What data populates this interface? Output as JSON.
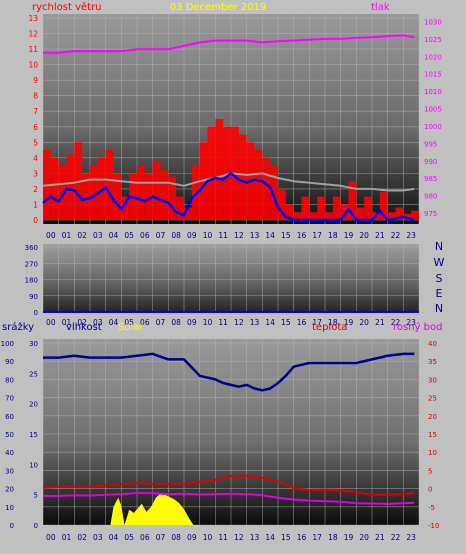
{
  "colors": {
    "wind": "#ff0000",
    "gust": "#a0a0a0",
    "speed_line": "#0000ff",
    "pressure": "#ff00ff",
    "humidity": "#000090",
    "temperature": "#e00000",
    "dew_point": "#e000e0",
    "solar": "#ffff00",
    "frame_bg": "#c0c0c0",
    "dir_labels": "#000080",
    "rain_labels": "#000080",
    "date_color": "#ffff00"
  },
  "chart_data": [
    {
      "type": "line",
      "title": "03 December 2019",
      "left_label": "rychlost větru",
      "right_label": "tlak",
      "x_ticks": [
        "00",
        "01",
        "02",
        "03",
        "04",
        "05",
        "06",
        "07",
        "08",
        "09",
        "10",
        "11",
        "12",
        "13",
        "14",
        "15",
        "16",
        "17",
        "18",
        "19",
        "20",
        "21",
        "22",
        "23"
      ],
      "y_left_ticks": [
        "0",
        "1",
        "2",
        "3",
        "4",
        "5",
        "6",
        "7",
        "8",
        "9",
        "10",
        "11",
        "12",
        "13"
      ],
      "y_right_ticks": [
        "975",
        "980",
        "985",
        "990",
        "995",
        "1000",
        "1005",
        "1010",
        "1015",
        "1020",
        "1025",
        "1030"
      ],
      "ylim_left": [
        0,
        13
      ],
      "ylim_right": [
        973,
        1031
      ],
      "series": [
        {
          "key": "pressure",
          "axis": "right",
          "x": [
            0,
            1,
            2,
            3,
            4,
            5,
            6,
            7,
            8,
            9,
            10,
            11,
            12,
            13,
            14,
            15,
            16,
            17,
            18,
            19,
            20,
            21,
            22,
            23,
            23.7
          ],
          "values": [
            1021,
            1021,
            1021.5,
            1021.5,
            1021.5,
            1021.5,
            1022,
            1022,
            1022,
            1023,
            1024,
            1024.5,
            1024.5,
            1024.5,
            1024,
            1024.3,
            1024.5,
            1024.8,
            1025,
            1025,
            1025.3,
            1025.5,
            1025.8,
            1026,
            1025.5
          ]
        },
        {
          "key": "gust",
          "axis": "left",
          "x": [
            0,
            1,
            2,
            3,
            4,
            5,
            6,
            7,
            8,
            9,
            10,
            11,
            12,
            13,
            14,
            15,
            16,
            17,
            18,
            19,
            20,
            21,
            22,
            23,
            23.7
          ],
          "values": [
            2.2,
            2.3,
            2.4,
            2.6,
            2.6,
            2.5,
            2.4,
            2.4,
            2.4,
            2.2,
            2.5,
            2.7,
            3.0,
            2.9,
            3.0,
            2.7,
            2.5,
            2.4,
            2.3,
            2.2,
            2.0,
            2.0,
            1.9,
            1.9,
            2.0
          ]
        },
        {
          "key": "speed_line",
          "axis": "left",
          "x": [
            0,
            0.5,
            1,
            1.5,
            2,
            2.5,
            3,
            3.5,
            4,
            4.5,
            5,
            5.5,
            6,
            6.5,
            7,
            7.5,
            8,
            8.5,
            9,
            9.5,
            10,
            10.5,
            11,
            11.5,
            12,
            12.5,
            13,
            13.5,
            14,
            14.5,
            15,
            15.5,
            16,
            17,
            18,
            19,
            19.5,
            20,
            21,
            21.5,
            22,
            23,
            23.7
          ],
          "values": [
            1.1,
            1.5,
            1.2,
            2.0,
            1.9,
            1.3,
            1.4,
            1.7,
            2.1,
            1.3,
            0.7,
            1.5,
            1.4,
            1.2,
            1.5,
            1.3,
            1.1,
            0.5,
            0.3,
            1.4,
            1.9,
            2.5,
            2.7,
            2.6,
            3.0,
            2.6,
            2.4,
            2.6,
            2.5,
            2.1,
            0.8,
            0.2,
            0.0,
            0.0,
            0.0,
            0.0,
            0.7,
            0.0,
            0.0,
            0.6,
            0.0,
            0.2,
            0.0
          ]
        },
        {
          "key": "wind",
          "axis": "left",
          "x": [
            0,
            0.5,
            1,
            1.5,
            2,
            2.5,
            3,
            3.5,
            4,
            4.5,
            5,
            5.5,
            6,
            6.5,
            7,
            7.5,
            8,
            8.5,
            9,
            9.5,
            10,
            10.5,
            11,
            11.5,
            12,
            12.5,
            13,
            13.5,
            14,
            14.5,
            15,
            15.5,
            16,
            16.5,
            17,
            17.5,
            18,
            18.5,
            19,
            19.5,
            20,
            20.5,
            21,
            21.5,
            22,
            22.5,
            23,
            23.5
          ],
          "values": [
            4.5,
            4.0,
            3.5,
            4.2,
            5.0,
            3.0,
            3.5,
            4.0,
            4.5,
            3.0,
            1.5,
            3.0,
            3.5,
            3.0,
            3.8,
            3.2,
            2.8,
            1.5,
            0.8,
            3.5,
            5.0,
            6.0,
            6.5,
            6.0,
            6.0,
            5.5,
            5.0,
            4.5,
            4.0,
            3.5,
            2.0,
            1.0,
            0.5,
            1.5,
            0.5,
            1.5,
            0.5,
            1.5,
            1.0,
            2.5,
            0.8,
            1.5,
            0.5,
            1.8,
            0.5,
            0.8,
            0.4,
            0.6
          ]
        }
      ]
    },
    {
      "type": "scatter",
      "x_ticks": [
        "00",
        "01",
        "02",
        "03",
        "04",
        "05",
        "06",
        "07",
        "08",
        "09",
        "10",
        "11",
        "12",
        "13",
        "14",
        "15",
        "16",
        "17",
        "18",
        "19",
        "20",
        "21",
        "22",
        "23"
      ],
      "y_ticks": [
        "0",
        "90",
        "180",
        "270",
        "360"
      ],
      "ylim": [
        0,
        360
      ],
      "dir_labels": [
        "N",
        "W",
        "S",
        "E",
        "N"
      ],
      "series": [
        {
          "key": "direction",
          "x": [],
          "values": []
        }
      ]
    },
    {
      "type": "line",
      "labels": {
        "rain": "srážky",
        "humidity": "vlhkost",
        "solar": "Solar",
        "temperature": "teplota",
        "dew_point": "rosný bod"
      },
      "x_ticks": [
        "00",
        "01",
        "02",
        "03",
        "04",
        "05",
        "06",
        "07",
        "08",
        "09",
        "10",
        "11",
        "12",
        "13",
        "14",
        "15",
        "16",
        "17",
        "18",
        "19",
        "20",
        "21",
        "22",
        "23"
      ],
      "y_rain_ticks": [
        "0",
        "10",
        "20",
        "30",
        "40",
        "50",
        "60",
        "70",
        "80",
        "90",
        "100"
      ],
      "y_humidity_ticks": [
        "0",
        "5",
        "10",
        "15",
        "20",
        "25",
        "30"
      ],
      "y_temp_ticks": [
        "-10",
        "-5",
        "0",
        "5",
        "10",
        "15",
        "20",
        "25",
        "30",
        "35",
        "40"
      ],
      "ylim_rain": [
        0,
        100
      ],
      "ylim_humidity": [
        0,
        30
      ],
      "ylim_temp": [
        -10,
        40
      ],
      "series": [
        {
          "key": "humidity",
          "axis": "rain",
          "x": [
            0,
            1,
            2,
            3,
            4,
            5,
            6,
            7,
            8,
            9,
            10,
            11,
            11.5,
            12,
            12.5,
            13,
            13.5,
            14,
            14.5,
            15,
            15.5,
            16,
            17,
            18,
            19,
            20,
            21,
            22,
            23,
            23.7
          ],
          "values": [
            92,
            92,
            93,
            92,
            92,
            92,
            93,
            94,
            91,
            91,
            82,
            80,
            78,
            77,
            76,
            77,
            75,
            74,
            75,
            78,
            82,
            87,
            89,
            89,
            89,
            89,
            91,
            93,
            94,
            94
          ]
        },
        {
          "key": "temperature",
          "axis": "temp",
          "x": [
            0,
            1,
            2,
            3,
            4,
            5,
            6,
            7,
            8,
            9,
            10,
            11,
            12,
            13,
            14,
            15,
            16,
            17,
            18,
            19,
            20,
            21,
            22,
            23,
            23.7
          ],
          "values": [
            0.2,
            0.5,
            0.6,
            0.5,
            0.8,
            1.2,
            1.5,
            1.3,
            1.2,
            1.2,
            1.9,
            2.4,
            3.4,
            3.6,
            3.0,
            1.9,
            0.1,
            -0.4,
            -0.3,
            -0.4,
            -1.0,
            -1.7,
            -1.7,
            -1.5,
            -1.2
          ]
        },
        {
          "key": "dew_point",
          "axis": "temp",
          "x": [
            0,
            1,
            2,
            3,
            4,
            5,
            6,
            7,
            8,
            9,
            10,
            11,
            12,
            13,
            14,
            15,
            16,
            17,
            18,
            19,
            20,
            21,
            22,
            23,
            23.7
          ],
          "values": [
            -2.0,
            -2.0,
            -1.8,
            -1.9,
            -1.7,
            -1.5,
            -1.2,
            -1.3,
            -1.5,
            -1.4,
            -1.6,
            -1.5,
            -1.4,
            -1.5,
            -1.8,
            -2.5,
            -3.0,
            -3.3,
            -3.5,
            -3.6,
            -4.0,
            -4.1,
            -4.2,
            -4.0,
            -3.9
          ]
        },
        {
          "key": "solar",
          "axis": "humidity",
          "x": [
            4.3,
            4.5,
            4.8,
            5.0,
            5.2,
            5.5,
            5.8,
            6.0,
            6.3,
            6.6,
            6.9,
            7.2,
            7.5,
            7.8,
            8.1,
            8.4,
            8.7,
            9.0,
            9.3,
            9.6
          ],
          "values": [
            0,
            3.0,
            4.5,
            3.2,
            0,
            2.5,
            2.0,
            2.6,
            3.5,
            2.2,
            3.0,
            4.5,
            5.2,
            5.0,
            4.6,
            4.2,
            3.6,
            2.6,
            1.2,
            0
          ]
        }
      ]
    }
  ]
}
